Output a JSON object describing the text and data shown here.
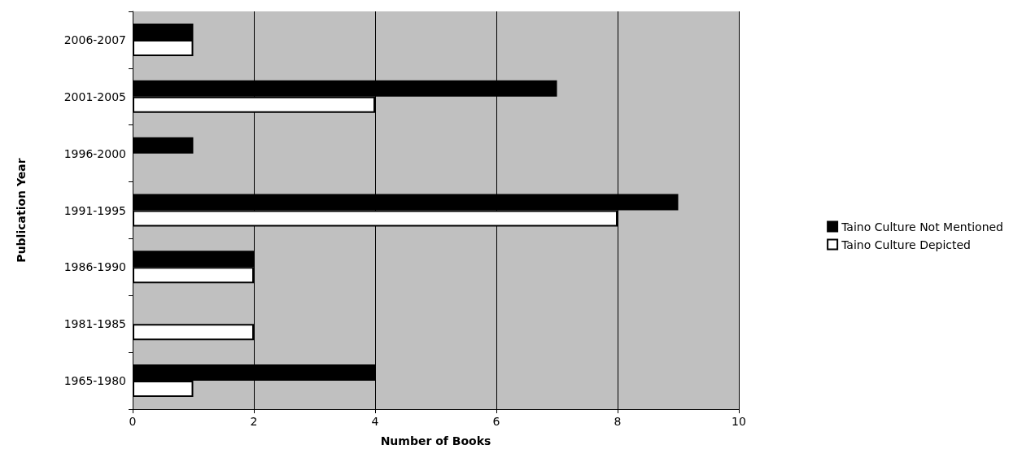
{
  "chart_data": {
    "type": "bar",
    "orientation": "horizontal",
    "xlabel": "Number of Books",
    "ylabel": "Publication Year",
    "categories": [
      "2006-2007",
      "2001-2005",
      "1996-2000",
      "1991-1995",
      "1986-1990",
      "1981-1985",
      "1965-1980"
    ],
    "series": [
      {
        "name": "Taino Culture Not Mentioned",
        "color": "#000000",
        "values": [
          1,
          7,
          1,
          9,
          2,
          0,
          4
        ]
      },
      {
        "name": "Taino Culture Depicted",
        "color": "#ffffff",
        "values": [
          1,
          4,
          0,
          8,
          2,
          2,
          1
        ]
      }
    ],
    "xlim": [
      0,
      10
    ],
    "xticks": [
      0,
      2,
      4,
      6,
      8,
      10
    ],
    "grid": "x",
    "legend": "right"
  }
}
